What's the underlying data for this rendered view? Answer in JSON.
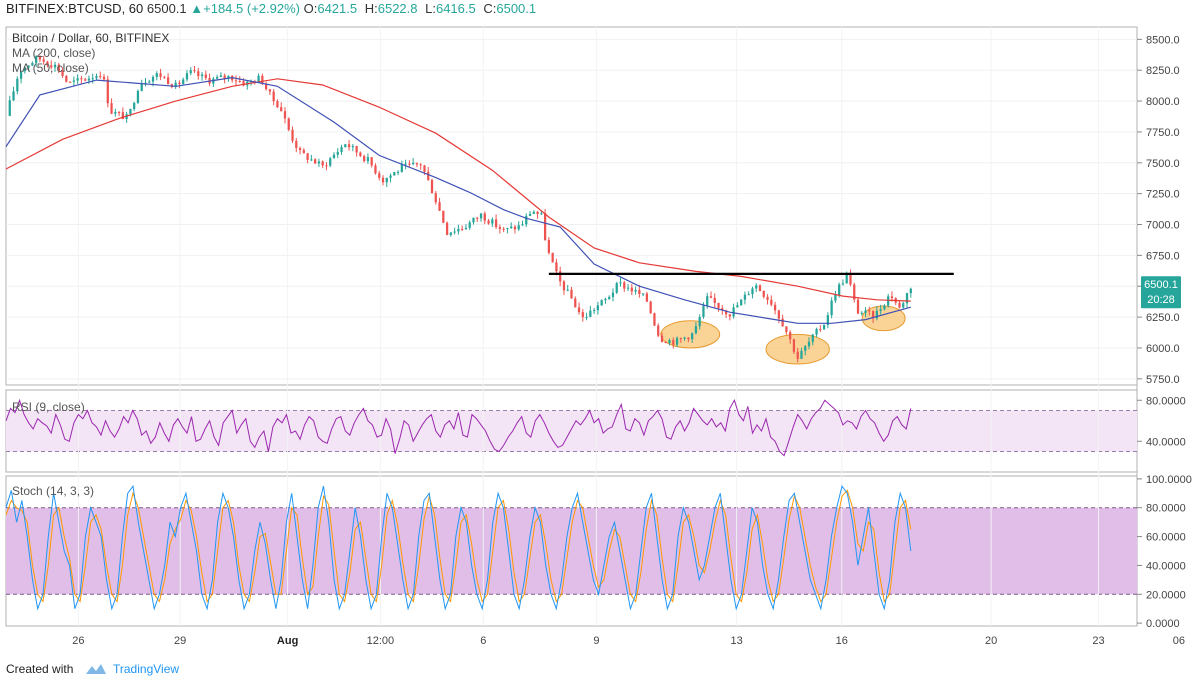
{
  "header": {
    "symbol": "BITFINEX:BTCUSD, 60",
    "last": "6500.1",
    "change": "▲+184.5 (+2.92%)",
    "o_label": "O:",
    "o_value": "6421.5",
    "h_label": "H:",
    "h_value": "6522.8",
    "l_label": "L:",
    "l_value": "6416.5",
    "c_label": "C:",
    "c_value": "6500.1"
  },
  "main_pane": {
    "title": "Bitcoin / Dollar, 60, BITFINEX",
    "ma1_label": "MA (200, close)",
    "ma2_label": "MA (50, close)"
  },
  "rsi_pane": {
    "label": "RSI (9, close)"
  },
  "stoch_pane": {
    "label": "Stoch (14, 3, 3)"
  },
  "price_badge": {
    "value": "6500.1",
    "countdown": "20:28"
  },
  "colors": {
    "up": "#26a69a",
    "down": "#ef5350",
    "ma200": "#e53935",
    "ma50": "#3f51b5",
    "rsi": "#9c27b0",
    "stoch_k": "#2196f3",
    "stoch_d": "#ff9800",
    "rsi_band": "#f3e5f5",
    "stoch_band": "#e1bee7",
    "highlight": "#f5b041",
    "resistance": "#000000"
  },
  "footer": {
    "created": "Created with",
    "brand": "TradingView"
  },
  "chart_data": {
    "type": "candlestick",
    "price_axis": {
      "range": [
        5700,
        8600
      ],
      "ticks": [
        "8500.0",
        "8250.0",
        "8000.0",
        "7750.0",
        "7500.0",
        "7250.0",
        "7000.0",
        "6750.0",
        "6500.0",
        "6250.0",
        "6000.0",
        "5750.0"
      ]
    },
    "rsi_axis": {
      "range": [
        10,
        90
      ],
      "ticks": [
        "80.0000",
        "40.0000"
      ],
      "bands": [
        30,
        70
      ]
    },
    "stoch_axis": {
      "range": [
        -2,
        102
      ],
      "ticks": [
        "100.0000",
        "80.0000",
        "60.0000",
        "40.0000",
        "20.0000",
        "0.0000"
      ],
      "bands": [
        20,
        80
      ]
    },
    "x_axis": {
      "ticks": [
        {
          "label": "26",
          "t": 0.064
        },
        {
          "label": "29",
          "t": 0.154
        },
        {
          "label": "Aug",
          "t": 0.249
        },
        {
          "label": "12:00",
          "t": 0.331
        },
        {
          "label": "6",
          "t": 0.422
        },
        {
          "label": "9",
          "t": 0.522
        },
        {
          "label": "13",
          "t": 0.646
        },
        {
          "label": "16",
          "t": 0.739
        },
        {
          "label": "20",
          "t": 0.871
        },
        {
          "label": "23",
          "t": 0.966
        },
        {
          "label": "06",
          "t": 1.037
        }
      ]
    },
    "price_path": [
      [
        0.0,
        7880
      ],
      [
        0.012,
        8250
      ],
      [
        0.028,
        8350
      ],
      [
        0.045,
        8280
      ],
      [
        0.055,
        8140
      ],
      [
        0.07,
        8180
      ],
      [
        0.085,
        8230
      ],
      [
        0.092,
        7920
      ],
      [
        0.108,
        7860
      ],
      [
        0.118,
        8150
      ],
      [
        0.135,
        8220
      ],
      [
        0.15,
        8120
      ],
      [
        0.163,
        8230
      ],
      [
        0.18,
        8170
      ],
      [
        0.198,
        8200
      ],
      [
        0.212,
        8140
      ],
      [
        0.225,
        8190
      ],
      [
        0.235,
        8020
      ],
      [
        0.242,
        7960
      ],
      [
        0.252,
        7720
      ],
      [
        0.26,
        7580
      ],
      [
        0.28,
        7470
      ],
      [
        0.3,
        7660
      ],
      [
        0.32,
        7520
      ],
      [
        0.333,
        7360
      ],
      [
        0.35,
        7460
      ],
      [
        0.367,
        7490
      ],
      [
        0.378,
        7250
      ],
      [
        0.39,
        6940
      ],
      [
        0.405,
        6980
      ],
      [
        0.42,
        7080
      ],
      [
        0.44,
        6950
      ],
      [
        0.455,
        6990
      ],
      [
        0.465,
        7120
      ],
      [
        0.474,
        7060
      ],
      [
        0.478,
        6810
      ],
      [
        0.488,
        6560
      ],
      [
        0.5,
        6400
      ],
      [
        0.51,
        6240
      ],
      [
        0.52,
        6320
      ],
      [
        0.53,
        6390
      ],
      [
        0.542,
        6520
      ],
      [
        0.552,
        6480
      ],
      [
        0.566,
        6400
      ],
      [
        0.578,
        6080
      ],
      [
        0.592,
        6050
      ],
      [
        0.608,
        6120
      ],
      [
        0.62,
        6400
      ],
      [
        0.64,
        6280
      ],
      [
        0.652,
        6400
      ],
      [
        0.662,
        6520
      ],
      [
        0.676,
        6380
      ],
      [
        0.688,
        6180
      ],
      [
        0.7,
        5920
      ],
      [
        0.712,
        6070
      ],
      [
        0.724,
        6210
      ],
      [
        0.733,
        6450
      ],
      [
        0.744,
        6600
      ],
      [
        0.752,
        6300
      ],
      [
        0.768,
        6260
      ],
      [
        0.782,
        6440
      ],
      [
        0.79,
        6320
      ],
      [
        0.8,
        6500
      ]
    ],
    "ma200_path": [
      [
        0.0,
        7450
      ],
      [
        0.05,
        7690
      ],
      [
        0.1,
        7860
      ],
      [
        0.15,
        8000
      ],
      [
        0.2,
        8120
      ],
      [
        0.24,
        8180
      ],
      [
        0.28,
        8130
      ],
      [
        0.33,
        7950
      ],
      [
        0.38,
        7740
      ],
      [
        0.43,
        7440
      ],
      [
        0.48,
        7060
      ],
      [
        0.52,
        6810
      ],
      [
        0.56,
        6690
      ],
      [
        0.61,
        6620
      ],
      [
        0.65,
        6580
      ],
      [
        0.7,
        6500
      ],
      [
        0.74,
        6420
      ],
      [
        0.77,
        6390
      ],
      [
        0.8,
        6380
      ]
    ],
    "ma50_path": [
      [
        0.0,
        7630
      ],
      [
        0.03,
        8050
      ],
      [
        0.08,
        8170
      ],
      [
        0.15,
        8120
      ],
      [
        0.2,
        8190
      ],
      [
        0.24,
        8120
      ],
      [
        0.29,
        7830
      ],
      [
        0.33,
        7560
      ],
      [
        0.38,
        7380
      ],
      [
        0.41,
        7260
      ],
      [
        0.44,
        7120
      ],
      [
        0.46,
        7050
      ],
      [
        0.49,
        6980
      ],
      [
        0.52,
        6680
      ],
      [
        0.56,
        6500
      ],
      [
        0.6,
        6390
      ],
      [
        0.64,
        6290
      ],
      [
        0.68,
        6230
      ],
      [
        0.7,
        6200
      ],
      [
        0.73,
        6200
      ],
      [
        0.76,
        6230
      ],
      [
        0.8,
        6330
      ]
    ],
    "resistance_line": {
      "price": 6600,
      "t_start": 0.48,
      "t_end": 0.838
    },
    "highlights": [
      {
        "t": 0.605,
        "price": 6110,
        "rx": 0.026,
        "ry": 110
      },
      {
        "t": 0.7,
        "price": 5990,
        "rx": 0.028,
        "ry": 120
      },
      {
        "t": 0.776,
        "price": 6240,
        "rx": 0.019,
        "ry": 100
      }
    ],
    "rsi_values": [
      60,
      72,
      68,
      80,
      66,
      58,
      52,
      62,
      58,
      55,
      48,
      66,
      56,
      42,
      40,
      58,
      66,
      62,
      70,
      58,
      54,
      46,
      60,
      50,
      44,
      52,
      64,
      58,
      70,
      62,
      46,
      50,
      38,
      44,
      58,
      48,
      40,
      56,
      62,
      54,
      48,
      64,
      40,
      42,
      52,
      60,
      44,
      36,
      58,
      64,
      70,
      48,
      56,
      62,
      40,
      34,
      44,
      50,
      30,
      54,
      62,
      58,
      66,
      48,
      50,
      42,
      56,
      64,
      60,
      44,
      40,
      38,
      52,
      62,
      64,
      50,
      46,
      58,
      66,
      72,
      60,
      56,
      44,
      46,
      62,
      52,
      28,
      42,
      60,
      56,
      40,
      48,
      56,
      62,
      66,
      50,
      44,
      56,
      60,
      52,
      68,
      46,
      44,
      66,
      62,
      56,
      50,
      40,
      32,
      30,
      36,
      44,
      50,
      58,
      64,
      48,
      44,
      60,
      66,
      58,
      48,
      40,
      34,
      36,
      44,
      52,
      60,
      56,
      62,
      70,
      58,
      62,
      48,
      52,
      54,
      66,
      76,
      52,
      50,
      62,
      58,
      46,
      60,
      64,
      70,
      62,
      44,
      42,
      54,
      60,
      50,
      58,
      72,
      66,
      60,
      56,
      62,
      54,
      58,
      50,
      72,
      80,
      66,
      60,
      74,
      48,
      56,
      50,
      62,
      44,
      40,
      30,
      26,
      40,
      54,
      66,
      60,
      52,
      62,
      68,
      72,
      80,
      76,
      72,
      68,
      56,
      60,
      58,
      52,
      64,
      70,
      62,
      58,
      48,
      40,
      46,
      60,
      64,
      56,
      52,
      72
    ],
    "stoch_k": [
      80,
      92,
      70,
      85,
      60,
      30,
      10,
      20,
      60,
      90,
      70,
      50,
      40,
      10,
      20,
      60,
      80,
      70,
      60,
      30,
      10,
      20,
      60,
      90,
      95,
      70,
      50,
      30,
      10,
      20,
      40,
      70,
      60,
      80,
      90,
      70,
      50,
      20,
      10,
      30,
      70,
      90,
      80,
      60,
      30,
      10,
      20,
      50,
      70,
      55,
      30,
      10,
      30,
      70,
      90,
      60,
      30,
      10,
      40,
      80,
      95,
      70,
      30,
      10,
      20,
      50,
      80,
      60,
      30,
      10,
      20,
      60,
      90,
      80,
      55,
      30,
      10,
      20,
      60,
      85,
      90,
      60,
      30,
      10,
      20,
      60,
      80,
      70,
      40,
      20,
      10,
      30,
      70,
      90,
      80,
      50,
      20,
      10,
      30,
      60,
      80,
      70,
      40,
      20,
      10,
      30,
      60,
      80,
      90,
      70,
      50,
      30,
      20,
      40,
      60,
      70,
      50,
      30,
      10,
      20,
      50,
      80,
      90,
      60,
      30,
      10,
      20,
      60,
      80,
      70,
      50,
      30,
      40,
      60,
      80,
      90,
      60,
      30,
      10,
      20,
      50,
      80,
      70,
      40,
      20,
      10,
      30,
      60,
      85,
      90,
      70,
      50,
      30,
      20,
      10,
      30,
      60,
      80,
      95,
      90,
      70,
      40,
      60,
      80,
      50,
      20,
      10,
      30,
      70,
      90,
      80,
      50
    ],
    "stoch_d": [
      75,
      85,
      80,
      78,
      70,
      40,
      20,
      15,
      40,
      75,
      80,
      60,
      45,
      20,
      15,
      40,
      70,
      75,
      65,
      40,
      20,
      15,
      40,
      75,
      90,
      80,
      60,
      40,
      20,
      15,
      30,
      55,
      65,
      72,
      85,
      78,
      60,
      35,
      15,
      20,
      50,
      80,
      85,
      70,
      40,
      20,
      15,
      35,
      60,
      62,
      42,
      20,
      20,
      50,
      80,
      75,
      45,
      20,
      25,
      60,
      88,
      82,
      50,
      20,
      15,
      35,
      65,
      70,
      45,
      20,
      15,
      40,
      75,
      85,
      68,
      42,
      20,
      15,
      40,
      72,
      88,
      75,
      45,
      20,
      15,
      40,
      70,
      75,
      55,
      30,
      15,
      20,
      50,
      80,
      85,
      65,
      35,
      15,
      20,
      45,
      70,
      75,
      55,
      30,
      15,
      20,
      45,
      70,
      85,
      80,
      60,
      40,
      25,
      30,
      50,
      65,
      60,
      40,
      20,
      15,
      35,
      65,
      85,
      75,
      45,
      20,
      15,
      40,
      70,
      75,
      60,
      40,
      35,
      50,
      70,
      85,
      75,
      45,
      20,
      15,
      35,
      65,
      75,
      55,
      30,
      15,
      20,
      45,
      72,
      88,
      80,
      60,
      40,
      25,
      15,
      20,
      45,
      70,
      88,
      92,
      80,
      55,
      50,
      70,
      65,
      35,
      15,
      20,
      50,
      80,
      85,
      65
    ]
  }
}
